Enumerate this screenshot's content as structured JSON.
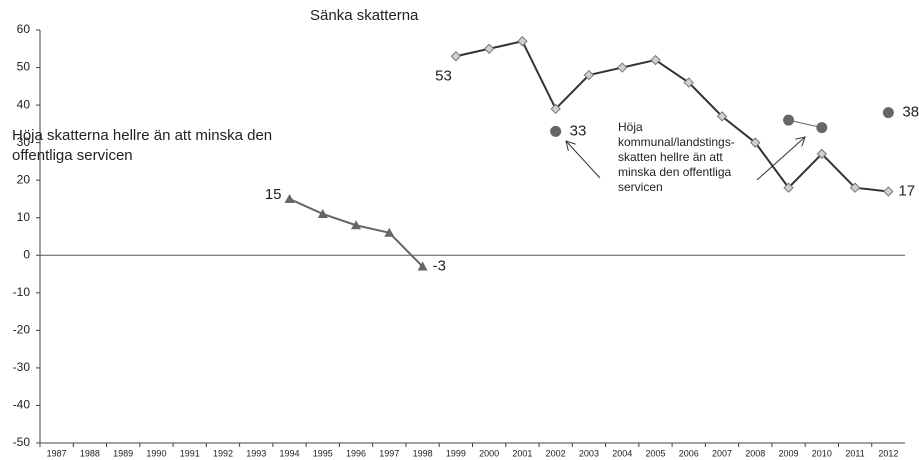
{
  "chart_data": {
    "type": "line",
    "categories": [
      "1987",
      "1988",
      "1989",
      "1990",
      "1991",
      "1992",
      "1993",
      "1994",
      "1995",
      "1996",
      "1997",
      "1998",
      "1999",
      "2000",
      "2001",
      "2002",
      "2003",
      "2004",
      "2005",
      "2006",
      "2007",
      "2008",
      "2009",
      "2010",
      "2011",
      "2012"
    ],
    "series": [
      {
        "name": "Höja skatterna hellre än att minska den offentliga servicen",
        "color": "#666666",
        "marker": "triangle",
        "values": [
          null,
          null,
          null,
          null,
          null,
          null,
          null,
          15,
          11,
          8,
          6,
          -3,
          null,
          null,
          null,
          null,
          null,
          null,
          null,
          null,
          null,
          null,
          null,
          null,
          null,
          null
        ],
        "value_labels": [
          null,
          null,
          null,
          null,
          null,
          null,
          null,
          "15",
          null,
          null,
          null,
          "-3",
          null,
          null,
          null,
          null,
          null,
          null,
          null,
          null,
          null,
          null,
          null,
          null,
          null,
          null
        ]
      },
      {
        "name": "Sänka skatterna",
        "color": "#333333",
        "marker": "diamond",
        "values": [
          null,
          null,
          null,
          null,
          null,
          null,
          null,
          null,
          null,
          null,
          null,
          null,
          53,
          55,
          57,
          39,
          48,
          50,
          52,
          46,
          37,
          30,
          18,
          27,
          18,
          17
        ],
        "value_labels": [
          null,
          null,
          null,
          null,
          null,
          null,
          null,
          null,
          null,
          null,
          null,
          null,
          "53",
          null,
          null,
          null,
          null,
          null,
          null,
          null,
          null,
          null,
          null,
          null,
          null,
          "17"
        ]
      },
      {
        "name": "Höja kommunal/landstings-skatten hellre än att minska den offentliga servicen",
        "color": "#666666",
        "marker": "circle",
        "values": [
          null,
          null,
          null,
          null,
          null,
          null,
          null,
          null,
          null,
          null,
          null,
          null,
          null,
          null,
          null,
          33,
          null,
          null,
          null,
          null,
          null,
          null,
          36,
          34,
          null,
          38
        ],
        "value_labels": [
          null,
          null,
          null,
          null,
          null,
          null,
          null,
          null,
          null,
          null,
          null,
          null,
          null,
          null,
          null,
          "33",
          null,
          null,
          null,
          null,
          null,
          null,
          null,
          null,
          null,
          "38"
        ]
      }
    ],
    "ylim": [
      -50,
      60
    ],
    "yticks": [
      -50,
      -40,
      -30,
      -20,
      -10,
      0,
      10,
      20,
      30,
      40,
      50,
      60
    ],
    "grid": false
  }
}
